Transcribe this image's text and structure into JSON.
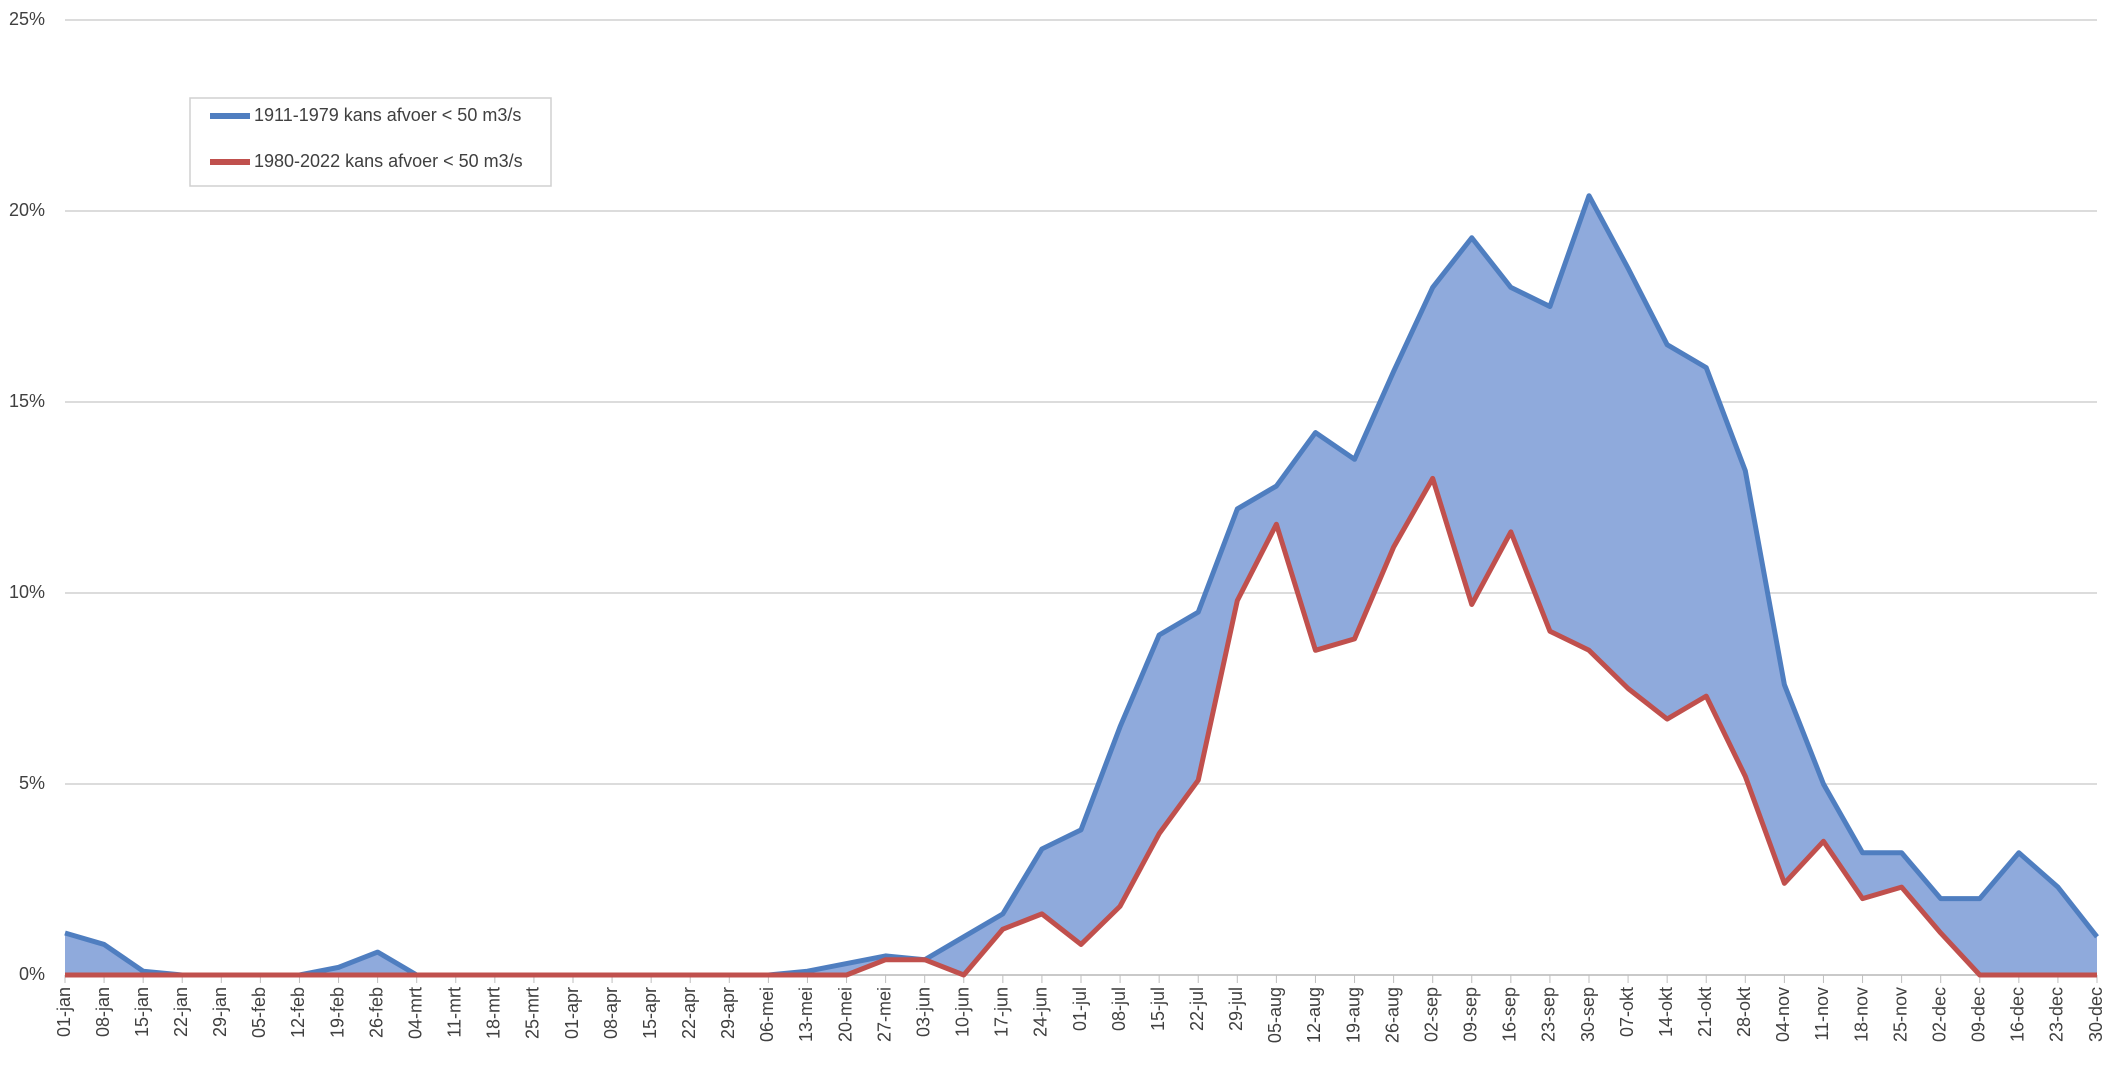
{
  "chart_data": {
    "type": "line",
    "categories": [
      "01-jan",
      "08-jan",
      "15-jan",
      "22-jan",
      "29-jan",
      "05-feb",
      "12-feb",
      "19-feb",
      "26-feb",
      "04-mrt",
      "11-mrt",
      "18-mrt",
      "25-mrt",
      "01-apr",
      "08-apr",
      "15-apr",
      "22-apr",
      "29-apr",
      "06-mei",
      "13-mei",
      "20-mei",
      "27-mei",
      "03-jun",
      "10-jun",
      "17-jun",
      "24-jun",
      "01-jul",
      "08-jul",
      "15-jul",
      "22-jul",
      "29-jul",
      "05-aug",
      "12-aug",
      "19-aug",
      "26-aug",
      "02-sep",
      "09-sep",
      "16-sep",
      "23-sep",
      "30-sep",
      "07-okt",
      "14-okt",
      "21-okt",
      "28-okt",
      "04-nov",
      "11-nov",
      "18-nov",
      "25-nov",
      "02-dec",
      "09-dec",
      "16-dec",
      "23-dec",
      "30-dec"
    ],
    "series": [
      {
        "name": "1911-1979 kans afvoer < 50 m3/s",
        "color": "#4f7ec0",
        "values": [
          1.1,
          0.8,
          0.1,
          0,
          0,
          0,
          0,
          0.2,
          0.6,
          0,
          0,
          0,
          0,
          0,
          0,
          0,
          0,
          0,
          0,
          0.1,
          0.3,
          0.5,
          0.4,
          1.0,
          1.6,
          3.3,
          3.8,
          6.5,
          8.9,
          9.5,
          12.2,
          12.8,
          14.2,
          13.5,
          15.8,
          18.0,
          19.3,
          18.0,
          17.5,
          20.4,
          18.5,
          16.5,
          15.9,
          13.2,
          7.6,
          5.0,
          3.2,
          3.2,
          2.0,
          2.0,
          3.2,
          2.3,
          1.0
        ]
      },
      {
        "name": "1980-2022 kans afvoer < 50 m3/s",
        "color": "#c0504d",
        "values": [
          0,
          0,
          0,
          0,
          0,
          0,
          0,
          0,
          0,
          0,
          0,
          0,
          0,
          0,
          0,
          0,
          0,
          0,
          0,
          0,
          0,
          0.4,
          0.4,
          0,
          1.2,
          1.6,
          0.8,
          1.8,
          3.7,
          5.1,
          9.8,
          11.8,
          8.5,
          8.8,
          11.2,
          13.0,
          9.7,
          11.6,
          9.0,
          8.5,
          7.5,
          6.7,
          7.3,
          5.2,
          2.4,
          3.5,
          2.0,
          2.3,
          1.1,
          0,
          0,
          0,
          0
        ]
      }
    ],
    "fill_between_color": "#8faadc",
    "ylim": [
      0,
      25
    ],
    "yticks": [
      {
        "value": 0,
        "label": "0%"
      },
      {
        "value": 5,
        "label": "5%"
      },
      {
        "value": 10,
        "label": "10%"
      },
      {
        "value": 15,
        "label": "15%"
      },
      {
        "value": 20,
        "label": "20%"
      },
      {
        "value": 25,
        "label": "25%"
      }
    ],
    "grid": true,
    "legend": "upper left"
  }
}
